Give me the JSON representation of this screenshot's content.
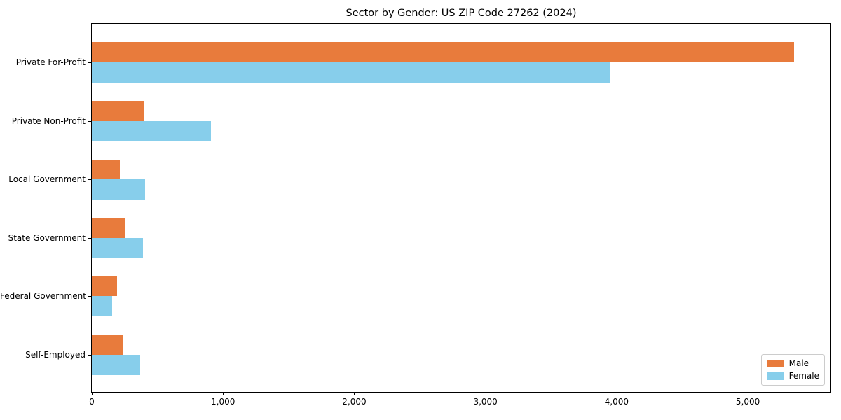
{
  "chart_data": {
    "type": "bar",
    "orientation": "horizontal",
    "title": "Sector by Gender: US ZIP Code 27262 (2024)",
    "categories": [
      "Private For-Profit",
      "Private Non-Profit",
      "Local Government",
      "State Government",
      "Federal Government",
      "Self-Employed"
    ],
    "series": [
      {
        "name": "Male",
        "color": "#E87B3C",
        "values": [
          5350,
          400,
          215,
          255,
          190,
          240
        ]
      },
      {
        "name": "Female",
        "color": "#87CEEB",
        "values": [
          3950,
          910,
          405,
          390,
          155,
          370
        ]
      }
    ],
    "xlabel": "",
    "ylabel": "",
    "xlim": [
      0,
      5630
    ],
    "x_ticks": [
      0,
      1000,
      2000,
      3000,
      4000,
      5000
    ],
    "x_tick_labels": [
      "0",
      "1,000",
      "2,000",
      "3,000",
      "4,000",
      "5,000"
    ],
    "legend_position": "lower right",
    "grid": false,
    "colors": {
      "male": "#E87B3C",
      "female": "#87CEEB",
      "spine": "#000000",
      "legend_border": "#cccccc",
      "background": "#ffffff"
    }
  }
}
